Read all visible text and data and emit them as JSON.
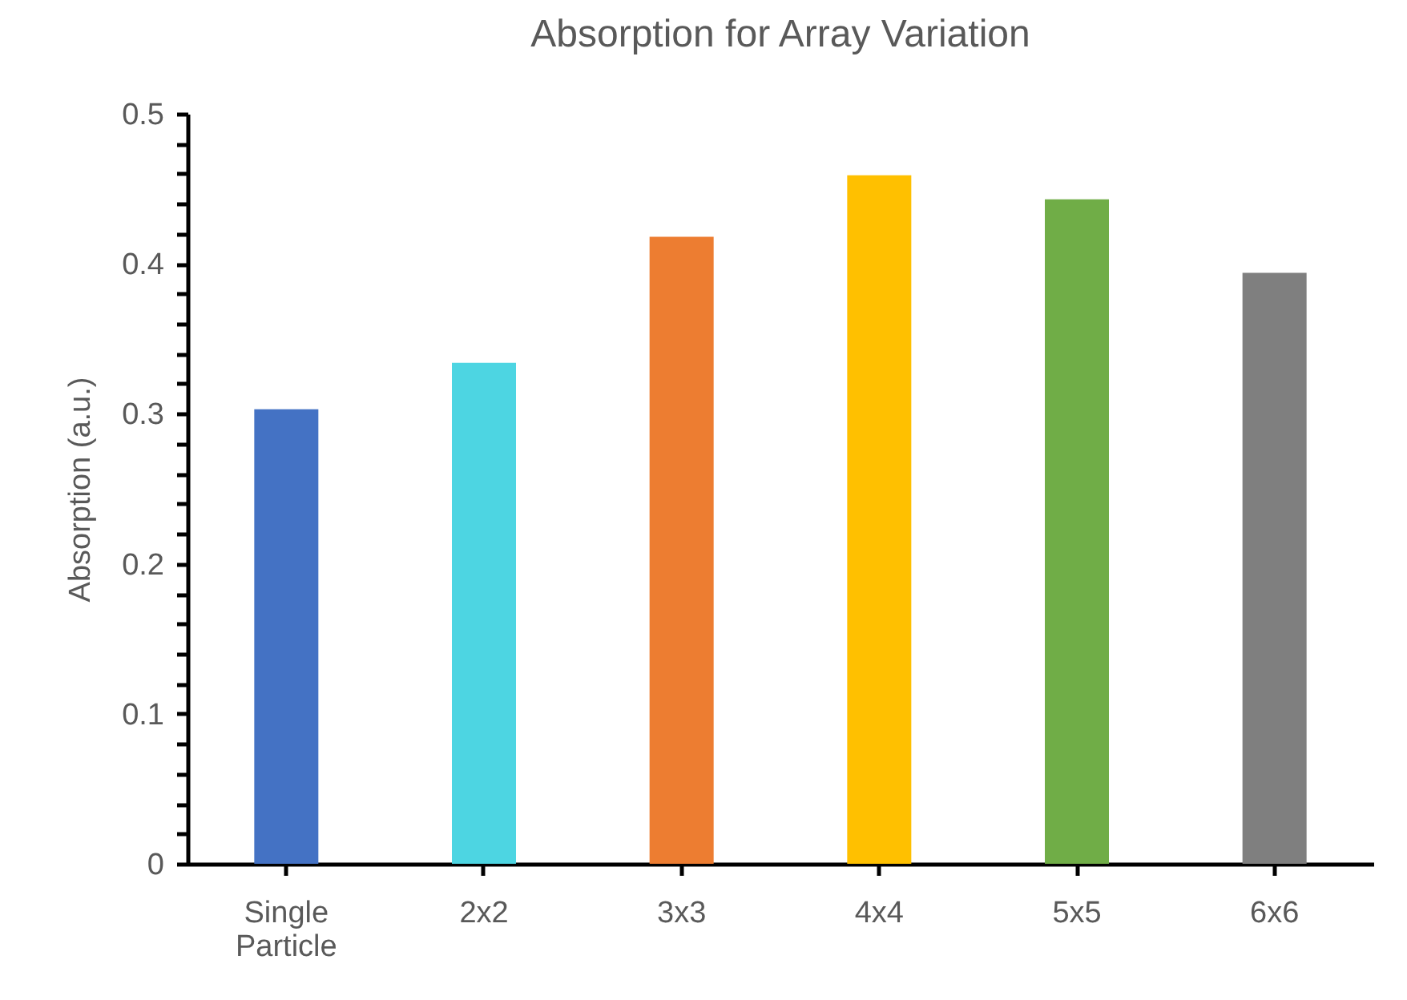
{
  "chart_data": {
    "type": "bar",
    "title": "Absorption for Array Variation",
    "ylabel": "Absorption (a.u.)",
    "categories": [
      "Single Particle",
      "2x2",
      "3x3",
      "4x4",
      "5x5",
      "6x6"
    ],
    "values": [
      0.303,
      0.334,
      0.418,
      0.459,
      0.443,
      0.394
    ],
    "colors": [
      "#4472c4",
      "#4dd5e2",
      "#ed7d31",
      "#ffc000",
      "#70ad47",
      "#7f7f7f"
    ],
    "ylim": [
      0,
      0.5
    ],
    "yticks": [
      0,
      {
        "value": 0.02,
        "label": null
      },
      {
        "value": 0.04,
        "label": null
      },
      {
        "value": 0.06,
        "label": null
      },
      {
        "value": 0.08,
        "label": null
      },
      0.1,
      {
        "value": 0.12,
        "label": null
      },
      {
        "value": 0.14,
        "label": null
      },
      {
        "value": 0.16,
        "label": null
      },
      {
        "value": 0.18,
        "label": null
      },
      0.2,
      {
        "value": 0.22,
        "label": null
      },
      {
        "value": 0.24,
        "label": null
      },
      {
        "value": 0.26,
        "label": null
      },
      {
        "value": 0.28,
        "label": null
      },
      0.3,
      {
        "value": 0.32,
        "label": null
      },
      {
        "value": 0.34,
        "label": null
      },
      {
        "value": 0.36,
        "label": null
      },
      {
        "value": 0.38,
        "label": null
      },
      0.4,
      {
        "value": 0.42,
        "label": null
      },
      {
        "value": 0.44,
        "label": null
      },
      {
        "value": 0.46,
        "label": null
      },
      {
        "value": 0.48,
        "label": null
      },
      0.5
    ],
    "grid": false
  }
}
